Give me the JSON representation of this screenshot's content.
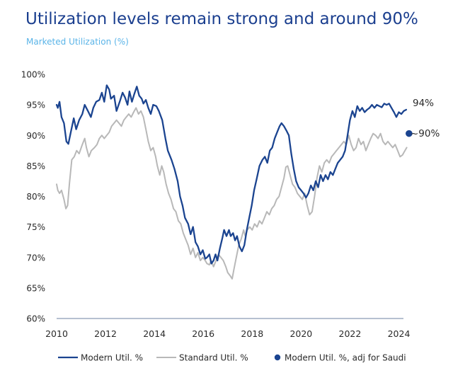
{
  "chart_data": {
    "type": "line",
    "title": "Utilization levels remain strong and around 90%",
    "subtitle": "Marketed Utilization (%)",
    "ylim": [
      60,
      100
    ],
    "xlim": [
      2010,
      2024.6
    ],
    "y_ticks": [
      "60%",
      "65%",
      "70%",
      "75%",
      "80%",
      "85%",
      "90%",
      "95%",
      "100%"
    ],
    "x_ticks": [
      "2010",
      "2012",
      "2014",
      "2016",
      "2018",
      "2020",
      "2022",
      "2024"
    ],
    "grid": false,
    "legend_position": "bottom",
    "series": [
      {
        "name": "Modern Util. %",
        "color": "#1b4490",
        "end_label": "94%",
        "points": [
          [
            2010.0,
            95.0
          ],
          [
            2010.05,
            94.5
          ],
          [
            2010.12,
            95.5
          ],
          [
            2010.2,
            93.0
          ],
          [
            2010.3,
            92.0
          ],
          [
            2010.4,
            89.0
          ],
          [
            2010.48,
            88.6
          ],
          [
            2010.58,
            90.5
          ],
          [
            2010.7,
            92.8
          ],
          [
            2010.8,
            91.0
          ],
          [
            2010.92,
            92.5
          ],
          [
            2011.05,
            93.5
          ],
          [
            2011.15,
            95.0
          ],
          [
            2011.28,
            94.0
          ],
          [
            2011.4,
            93.0
          ],
          [
            2011.5,
            94.5
          ],
          [
            2011.62,
            95.5
          ],
          [
            2011.75,
            95.8
          ],
          [
            2011.85,
            97.0
          ],
          [
            2011.95,
            95.5
          ],
          [
            2012.05,
            98.2
          ],
          [
            2012.15,
            97.5
          ],
          [
            2012.22,
            96.0
          ],
          [
            2012.35,
            96.5
          ],
          [
            2012.45,
            94.0
          ],
          [
            2012.58,
            95.5
          ],
          [
            2012.7,
            97.0
          ],
          [
            2012.8,
            96.2
          ],
          [
            2012.9,
            95.0
          ],
          [
            2012.98,
            97.2
          ],
          [
            2013.08,
            95.5
          ],
          [
            2013.18,
            96.8
          ],
          [
            2013.28,
            98.0
          ],
          [
            2013.38,
            96.5
          ],
          [
            2013.48,
            96.0
          ],
          [
            2013.55,
            95.2
          ],
          [
            2013.65,
            95.8
          ],
          [
            2013.75,
            94.5
          ],
          [
            2013.85,
            93.5
          ],
          [
            2013.95,
            95.0
          ],
          [
            2014.08,
            94.8
          ],
          [
            2014.18,
            94.0
          ],
          [
            2014.32,
            92.5
          ],
          [
            2014.45,
            89.5
          ],
          [
            2014.55,
            87.5
          ],
          [
            2014.7,
            86.0
          ],
          [
            2014.82,
            84.5
          ],
          [
            2014.95,
            82.5
          ],
          [
            2015.05,
            80.0
          ],
          [
            2015.15,
            78.5
          ],
          [
            2015.25,
            76.5
          ],
          [
            2015.38,
            75.5
          ],
          [
            2015.48,
            73.8
          ],
          [
            2015.58,
            75.0
          ],
          [
            2015.68,
            72.5
          ],
          [
            2015.78,
            71.8
          ],
          [
            2015.88,
            70.5
          ],
          [
            2015.98,
            71.2
          ],
          [
            2016.08,
            69.8
          ],
          [
            2016.15,
            70.0
          ],
          [
            2016.25,
            70.5
          ],
          [
            2016.33,
            69.0
          ],
          [
            2016.42,
            69.5
          ],
          [
            2016.5,
            70.5
          ],
          [
            2016.58,
            69.5
          ],
          [
            2016.68,
            71.5
          ],
          [
            2016.78,
            73.2
          ],
          [
            2016.85,
            74.5
          ],
          [
            2016.95,
            73.5
          ],
          [
            2017.05,
            74.5
          ],
          [
            2017.12,
            73.5
          ],
          [
            2017.22,
            74.0
          ],
          [
            2017.3,
            72.8
          ],
          [
            2017.38,
            73.5
          ],
          [
            2017.48,
            71.8
          ],
          [
            2017.58,
            71.0
          ],
          [
            2017.68,
            72.0
          ],
          [
            2017.78,
            74.5
          ],
          [
            2017.88,
            76.5
          ],
          [
            2017.98,
            78.5
          ],
          [
            2018.08,
            81.0
          ],
          [
            2018.18,
            82.8
          ],
          [
            2018.3,
            85.0
          ],
          [
            2018.42,
            86.0
          ],
          [
            2018.52,
            86.5
          ],
          [
            2018.62,
            85.5
          ],
          [
            2018.72,
            87.5
          ],
          [
            2018.82,
            88.0
          ],
          [
            2018.92,
            89.5
          ],
          [
            2019.02,
            90.5
          ],
          [
            2019.12,
            91.5
          ],
          [
            2019.2,
            92.0
          ],
          [
            2019.3,
            91.5
          ],
          [
            2019.4,
            90.8
          ],
          [
            2019.5,
            90.0
          ],
          [
            2019.6,
            87.0
          ],
          [
            2019.7,
            84.5
          ],
          [
            2019.8,
            82.5
          ],
          [
            2019.9,
            81.5
          ],
          [
            2020.0,
            81.0
          ],
          [
            2020.1,
            80.5
          ],
          [
            2020.2,
            79.8
          ],
          [
            2020.3,
            80.5
          ],
          [
            2020.4,
            81.8
          ],
          [
            2020.5,
            81.0
          ],
          [
            2020.6,
            82.5
          ],
          [
            2020.7,
            81.5
          ],
          [
            2020.8,
            83.5
          ],
          [
            2020.9,
            82.5
          ],
          [
            2021.0,
            83.5
          ],
          [
            2021.1,
            82.8
          ],
          [
            2021.2,
            84.0
          ],
          [
            2021.3,
            83.5
          ],
          [
            2021.4,
            84.5
          ],
          [
            2021.5,
            85.5
          ],
          [
            2021.6,
            86.0
          ],
          [
            2021.7,
            86.5
          ],
          [
            2021.8,
            87.5
          ],
          [
            2021.9,
            90.0
          ],
          [
            2022.0,
            92.5
          ],
          [
            2022.1,
            94.0
          ],
          [
            2022.2,
            93.0
          ],
          [
            2022.3,
            94.8
          ],
          [
            2022.4,
            94.0
          ],
          [
            2022.5,
            94.5
          ],
          [
            2022.6,
            93.8
          ],
          [
            2022.7,
            94.2
          ],
          [
            2022.8,
            94.5
          ],
          [
            2022.9,
            95.0
          ],
          [
            2023.0,
            94.5
          ],
          [
            2023.1,
            95.0
          ],
          [
            2023.2,
            94.8
          ],
          [
            2023.3,
            94.6
          ],
          [
            2023.4,
            95.2
          ],
          [
            2023.5,
            95.0
          ],
          [
            2023.6,
            95.2
          ],
          [
            2023.7,
            94.5
          ],
          [
            2023.8,
            93.8
          ],
          [
            2023.9,
            93.0
          ],
          [
            2024.0,
            93.8
          ],
          [
            2024.1,
            93.5
          ],
          [
            2024.2,
            94.0
          ],
          [
            2024.3,
            94.2
          ]
        ]
      },
      {
        "name": "Standard Util. %",
        "color": "#b8b8b8",
        "points": [
          [
            2010.0,
            82.0
          ],
          [
            2010.05,
            81.0
          ],
          [
            2010.12,
            80.5
          ],
          [
            2010.2,
            81.0
          ],
          [
            2010.3,
            79.5
          ],
          [
            2010.38,
            78.0
          ],
          [
            2010.45,
            78.5
          ],
          [
            2010.52,
            82.0
          ],
          [
            2010.62,
            86.0
          ],
          [
            2010.72,
            86.5
          ],
          [
            2010.82,
            87.5
          ],
          [
            2010.92,
            87.0
          ],
          [
            2011.05,
            88.5
          ],
          [
            2011.15,
            89.5
          ],
          [
            2011.22,
            88.0
          ],
          [
            2011.32,
            86.5
          ],
          [
            2011.42,
            87.5
          ],
          [
            2011.55,
            88.0
          ],
          [
            2011.65,
            88.5
          ],
          [
            2011.75,
            89.5
          ],
          [
            2011.85,
            90.0
          ],
          [
            2011.95,
            89.5
          ],
          [
            2012.05,
            90.0
          ],
          [
            2012.15,
            90.5
          ],
          [
            2012.25,
            91.5
          ],
          [
            2012.35,
            92.0
          ],
          [
            2012.45,
            92.5
          ],
          [
            2012.55,
            92.0
          ],
          [
            2012.65,
            91.5
          ],
          [
            2012.75,
            92.5
          ],
          [
            2012.85,
            93.0
          ],
          [
            2012.95,
            93.5
          ],
          [
            2013.05,
            93.0
          ],
          [
            2013.15,
            93.8
          ],
          [
            2013.25,
            94.5
          ],
          [
            2013.35,
            93.5
          ],
          [
            2013.45,
            94.0
          ],
          [
            2013.55,
            93.0
          ],
          [
            2013.65,
            91.0
          ],
          [
            2013.75,
            89.0
          ],
          [
            2013.85,
            87.5
          ],
          [
            2013.95,
            88.0
          ],
          [
            2014.05,
            86.5
          ],
          [
            2014.12,
            85.0
          ],
          [
            2014.22,
            83.5
          ],
          [
            2014.3,
            85.0
          ],
          [
            2014.38,
            84.0
          ],
          [
            2014.48,
            82.0
          ],
          [
            2014.58,
            80.5
          ],
          [
            2014.68,
            79.5
          ],
          [
            2014.78,
            78.0
          ],
          [
            2014.88,
            77.5
          ],
          [
            2014.98,
            76.0
          ],
          [
            2015.08,
            75.5
          ],
          [
            2015.18,
            74.0
          ],
          [
            2015.28,
            73.0
          ],
          [
            2015.38,
            72.0
          ],
          [
            2015.48,
            70.5
          ],
          [
            2015.58,
            71.5
          ],
          [
            2015.68,
            70.0
          ],
          [
            2015.78,
            70.8
          ],
          [
            2015.88,
            69.5
          ],
          [
            2015.98,
            70.0
          ],
          [
            2016.08,
            69.5
          ],
          [
            2016.15,
            69.0
          ],
          [
            2016.25,
            68.8
          ],
          [
            2016.32,
            69.5
          ],
          [
            2016.42,
            68.5
          ],
          [
            2016.52,
            69.5
          ],
          [
            2016.62,
            70.5
          ],
          [
            2016.72,
            70.0
          ],
          [
            2016.82,
            69.5
          ],
          [
            2016.92,
            68.5
          ],
          [
            2017.0,
            67.5
          ],
          [
            2017.1,
            67.0
          ],
          [
            2017.18,
            66.5
          ],
          [
            2017.25,
            68.0
          ],
          [
            2017.35,
            70.0
          ],
          [
            2017.45,
            72.0
          ],
          [
            2017.55,
            73.0
          ],
          [
            2017.65,
            74.5
          ],
          [
            2017.72,
            73.5
          ],
          [
            2017.8,
            74.5
          ],
          [
            2017.9,
            75.0
          ],
          [
            2018.0,
            74.5
          ],
          [
            2018.1,
            75.5
          ],
          [
            2018.2,
            75.0
          ],
          [
            2018.3,
            76.0
          ],
          [
            2018.4,
            75.5
          ],
          [
            2018.5,
            76.5
          ],
          [
            2018.6,
            77.5
          ],
          [
            2018.7,
            77.0
          ],
          [
            2018.8,
            78.0
          ],
          [
            2018.9,
            78.5
          ],
          [
            2019.0,
            79.5
          ],
          [
            2019.1,
            80.0
          ],
          [
            2019.2,
            81.5
          ],
          [
            2019.3,
            83.0
          ],
          [
            2019.38,
            84.8
          ],
          [
            2019.45,
            85.0
          ],
          [
            2019.55,
            83.5
          ],
          [
            2019.65,
            82.0
          ],
          [
            2019.75,
            81.5
          ],
          [
            2019.85,
            80.5
          ],
          [
            2019.95,
            80.0
          ],
          [
            2020.05,
            79.5
          ],
          [
            2020.15,
            80.5
          ],
          [
            2020.25,
            78.5
          ],
          [
            2020.35,
            77.0
          ],
          [
            2020.45,
            77.5
          ],
          [
            2020.55,
            80.0
          ],
          [
            2020.65,
            83.0
          ],
          [
            2020.75,
            85.0
          ],
          [
            2020.85,
            84.0
          ],
          [
            2020.95,
            85.5
          ],
          [
            2021.05,
            86.0
          ],
          [
            2021.15,
            85.5
          ],
          [
            2021.25,
            86.5
          ],
          [
            2021.35,
            87.0
          ],
          [
            2021.45,
            87.5
          ],
          [
            2021.55,
            88.0
          ],
          [
            2021.65,
            88.5
          ],
          [
            2021.75,
            89.0
          ],
          [
            2021.85,
            88.5
          ],
          [
            2021.95,
            90.0
          ],
          [
            2022.05,
            88.5
          ],
          [
            2022.15,
            87.5
          ],
          [
            2022.25,
            88.0
          ],
          [
            2022.35,
            89.5
          ],
          [
            2022.45,
            88.5
          ],
          [
            2022.55,
            89.0
          ],
          [
            2022.65,
            87.5
          ],
          [
            2022.75,
            88.5
          ],
          [
            2022.85,
            89.5
          ],
          [
            2022.95,
            90.3
          ],
          [
            2023.05,
            90.0
          ],
          [
            2023.15,
            89.5
          ],
          [
            2023.25,
            90.3
          ],
          [
            2023.35,
            89.0
          ],
          [
            2023.45,
            88.5
          ],
          [
            2023.55,
            89.0
          ],
          [
            2023.65,
            88.5
          ],
          [
            2023.75,
            88.0
          ],
          [
            2023.85,
            88.5
          ],
          [
            2023.95,
            87.5
          ],
          [
            2024.05,
            86.5
          ],
          [
            2024.15,
            86.8
          ],
          [
            2024.25,
            87.5
          ],
          [
            2024.32,
            88.0
          ]
        ]
      },
      {
        "name": "Modern Util. %, adj for Saudi",
        "color": "#1b4490",
        "marker": "dot",
        "end_label": "~90%",
        "points": [
          [
            2024.3,
            90.3
          ]
        ]
      }
    ]
  }
}
